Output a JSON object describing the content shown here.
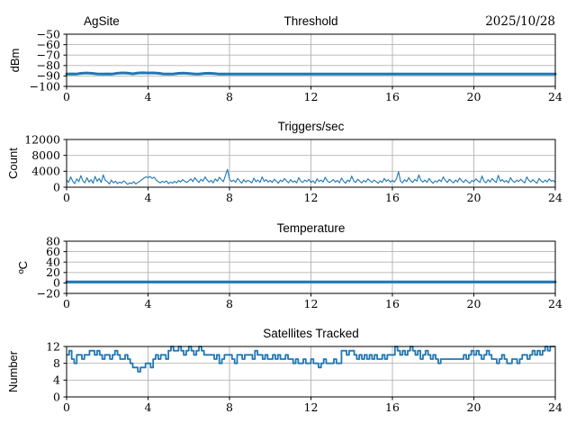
{
  "figure": {
    "background": "#ffffff",
    "line_color": "#1f77b4",
    "grid_color": "#b2b2b2",
    "spine_color": "#000000"
  },
  "chart_data": [
    {
      "type": "line",
      "title": "Threshold",
      "title_left": "AgSite",
      "title_right": "2025/10/28",
      "ylabel": "dBm",
      "xlim": [
        0,
        24
      ],
      "ylim": [
        -100,
        -50
      ],
      "xticks": [
        0,
        4,
        8,
        12,
        16,
        20,
        24
      ],
      "yticks": [
        -100,
        -90,
        -80,
        -70,
        -60,
        -50
      ],
      "grid": true,
      "legend": "none",
      "series": [
        {
          "name": "threshold_dbm",
          "color": "#1f77b4",
          "line_width": 3,
          "mode": "line",
          "values": [
            -88.1,
            -88,
            -88.1,
            -87.4,
            -87.2,
            -87.5,
            -88,
            -88.1,
            -88,
            -88.1,
            -87.4,
            -87.1,
            -87.3,
            -87.9,
            -87.2,
            -87,
            -87.2,
            -87.1,
            -87.4,
            -88,
            -88.1,
            -88,
            -87.5,
            -87.3,
            -87.6,
            -88,
            -88.1,
            -87.6,
            -87.4,
            -87.7,
            -88.2,
            -88.2,
            -88.1,
            -88.2,
            -88.2,
            -88.2,
            -88.1,
            -88.2,
            -88.2,
            -88.2,
            -88.2,
            -88.2,
            -88.1,
            -88.2,
            -88.2,
            -88.2,
            -88.1,
            -88.2,
            -88.2,
            -88.2,
            -88.2,
            -88.2,
            -88.1,
            -88.2,
            -88.2,
            -88.2,
            -88.1,
            -88.2,
            -88.2,
            -88.2,
            -88.2,
            -88.2,
            -88.1,
            -88.2,
            -88.2,
            -88.2,
            -88.1,
            -88.2,
            -88.2,
            -88.2,
            -88.2,
            -88.2,
            -88.1,
            -88.2,
            -88.2,
            -88.2,
            -88.1,
            -88.2,
            -88.2,
            -88.2,
            -88.2,
            -88.2,
            -88.1,
            -88.2,
            -88.2,
            -88.2,
            -88.1,
            -88.2,
            -88.2,
            -88.2,
            -88.2,
            -88.1,
            -88.2,
            -88.2,
            -88.2,
            -88.2,
            -88.2
          ]
        }
      ]
    },
    {
      "type": "line",
      "title": "Triggers/sec",
      "ylabel": "Count",
      "xlim": [
        0,
        24
      ],
      "ylim": [
        0,
        12000
      ],
      "xticks": [
        0,
        4,
        8,
        12,
        16,
        20,
        24
      ],
      "yticks": [
        0,
        4000,
        8000,
        12000
      ],
      "grid": true,
      "legend": "none",
      "series": [
        {
          "name": "triggers_per_sec",
          "color": "#1f77b4",
          "line_width": 1.1,
          "mode": "line",
          "values": [
            1800,
            1200,
            2600,
            1500,
            900,
            2100,
            1400,
            2900,
            1600,
            1100,
            2400,
            1300,
            1900,
            1000,
            2700,
            1500,
            2200,
            1200,
            3100,
            1700,
            1400,
            800,
            1800,
            1100,
            1500,
            900,
            1300,
            1000,
            1600,
            1200,
            700,
            1100,
            900,
            1400,
            800,
            1200,
            1500,
            1900,
            2300,
            2600,
            2400,
            2700,
            2200,
            2500,
            1800,
            1400,
            1100,
            1500,
            1200,
            1600,
            900,
            1300,
            1000,
            1500,
            1100,
            1700,
            1300,
            1900,
            1500,
            1200,
            1600,
            2100,
            1400,
            2400,
            1700,
            1200,
            2000,
            1500,
            2600,
            1800,
            1300,
            1700,
            1100,
            2100,
            1500,
            2500,
            1900,
            1400,
            2900,
            4500,
            2000,
            1400,
            1800,
            1200,
            2200,
            1600,
            1000,
            1900,
            1300,
            1700,
            1500,
            1100,
            2300,
            1400,
            1800,
            1200,
            2600,
            1500,
            1900,
            1300,
            1700,
            1200,
            2000,
            1500,
            1000,
            1800,
            1400,
            2200,
            1600,
            1100,
            1900,
            1300,
            1600,
            1100,
            2400,
            1500,
            1200,
            1800,
            1400,
            2000,
            1200,
            1600,
            1000,
            2100,
            1400,
            1800,
            1300,
            2500,
            1600,
            1200,
            1500,
            1900,
            1300,
            1700,
            1100,
            2300,
            1500,
            1000,
            1800,
            1400,
            2800,
            1600,
            1200,
            2000,
            1500,
            1100,
            1700,
            1300,
            2100,
            1600,
            1200,
            1800,
            1400,
            1000,
            1600,
            1200,
            2200,
            1500,
            1900,
            1300,
            1700,
            1300,
            2100,
            3900,
            1500,
            1100,
            1900,
            1400,
            2400,
            1600,
            1200,
            2000,
            1500,
            3100,
            1700,
            1300,
            1800,
            1200,
            2200,
            1500,
            1000,
            1600,
            1300,
            1900,
            1400,
            2600,
            1700,
            1200,
            2000,
            1500,
            1100,
            1800,
            1300,
            2300,
            1600,
            1200,
            1900,
            1400,
            1000,
            1700,
            1400,
            2100,
            1600,
            1200,
            2800,
            1500,
            1100,
            1900,
            1300,
            2200,
            1600,
            1200,
            3000,
            1500,
            1900,
            1300,
            1700,
            1100,
            2400,
            1600,
            1200,
            1800,
            1400,
            2000,
            1500,
            1100,
            2600,
            1700,
            1300,
            1900,
            1400,
            1000,
            2200,
            1600,
            1200,
            1800,
            1300,
            2100,
            1500,
            1700,
            1200
          ]
        }
      ]
    },
    {
      "type": "line",
      "title": "Temperature",
      "ylabel": "ºC",
      "xlim": [
        0,
        24
      ],
      "ylim": [
        -20,
        80
      ],
      "xticks": [
        0,
        4,
        8,
        12,
        16,
        20,
        24
      ],
      "yticks": [
        -20,
        0,
        20,
        40,
        60,
        80
      ],
      "grid": true,
      "legend": "none",
      "series": [
        {
          "name": "temperature_c",
          "color": "#1f77b4",
          "line_width": 3,
          "mode": "line",
          "values": [
            2,
            2
          ]
        }
      ]
    },
    {
      "type": "line",
      "title": "Satellites Tracked",
      "ylabel": "Number",
      "xlim": [
        0,
        24
      ],
      "ylim": [
        0,
        12
      ],
      "xticks": [
        0,
        4,
        8,
        12,
        16,
        20,
        24
      ],
      "yticks": [
        0,
        4,
        8,
        12
      ],
      "grid": true,
      "legend": "none",
      "series": [
        {
          "name": "satellites_tracked",
          "color": "#1f77b4",
          "line_width": 1.8,
          "mode": "step",
          "values": [
            10,
            11,
            9,
            8,
            10,
            10,
            9,
            10,
            10,
            11,
            11,
            10,
            11,
            10,
            9,
            10,
            10,
            9,
            10,
            11,
            10,
            9,
            9,
            10,
            9,
            8,
            7,
            7,
            6,
            7,
            7,
            8,
            8,
            7,
            9,
            10,
            9,
            10,
            10,
            9,
            11,
            12,
            11,
            11,
            12,
            11,
            10,
            11,
            12,
            11,
            10,
            11,
            12,
            11,
            10,
            10,
            10,
            10,
            9,
            10,
            8,
            9,
            10,
            10,
            10,
            9,
            8,
            10,
            10,
            9,
            10,
            10,
            10,
            9,
            11,
            10,
            10,
            9,
            10,
            9,
            9,
            10,
            9,
            10,
            9,
            9,
            10,
            9,
            9,
            8,
            9,
            8,
            8,
            9,
            8,
            8,
            9,
            8,
            8,
            7,
            8,
            9,
            8,
            8,
            8,
            9,
            8,
            8,
            11,
            11,
            10,
            11,
            11,
            10,
            9,
            10,
            9,
            10,
            9,
            10,
            9,
            10,
            9,
            9,
            10,
            9,
            10,
            10,
            10,
            12,
            11,
            10,
            11,
            10,
            11,
            12,
            11,
            10,
            11,
            9,
            10,
            11,
            10,
            9,
            10,
            9,
            8,
            9,
            9,
            9,
            9,
            9,
            9,
            9,
            9,
            9,
            10,
            9,
            10,
            11,
            10,
            11,
            10,
            9,
            10,
            11,
            10,
            9,
            9,
            8,
            9,
            10,
            9,
            8,
            8,
            9,
            9,
            8,
            9,
            10,
            10,
            9,
            10,
            11,
            10,
            11,
            10,
            11,
            12,
            11,
            12,
            12,
            12
          ]
        }
      ]
    }
  ]
}
